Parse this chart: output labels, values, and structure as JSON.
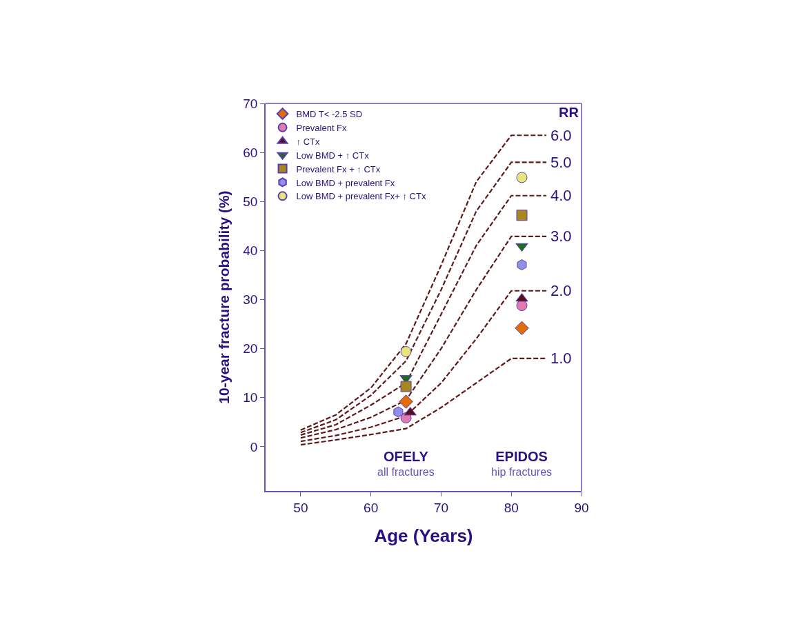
{
  "chart_data": {
    "type": "scatter",
    "xlabel": "Age (Years)",
    "ylabel": "10-year fracture probability (%)",
    "xlim": [
      45,
      90
    ],
    "xticks": [
      50,
      60,
      70,
      80,
      90
    ],
    "ylim": [
      -9,
      70
    ],
    "yticks": [
      0,
      10,
      20,
      30,
      40,
      50,
      60,
      70
    ],
    "grid": false,
    "legend": "top left",
    "annotations": [
      "RR",
      "OFELY\nall fractures",
      "EPIDOS\nhip fractures"
    ],
    "series": [
      {
        "name": "6.0",
        "type": "line",
        "line_style": "dashed",
        "marker": "none",
        "color": "#5c1a1a",
        "x": [
          50,
          55,
          60,
          65,
          70,
          75,
          80,
          85
        ],
        "values": [
          3.4,
          6.5,
          12,
          21,
          37,
          54,
          63.5,
          63.5
        ]
      },
      {
        "name": "5.0",
        "type": "line",
        "line_style": "dashed",
        "marker": "none",
        "color": "#5c1a1a",
        "x": [
          50,
          55,
          60,
          65,
          70,
          75,
          80,
          85
        ],
        "values": [
          2.9,
          5.5,
          10.5,
          17.5,
          32,
          48,
          58,
          58
        ]
      },
      {
        "name": "4.0",
        "type": "line",
        "line_style": "dashed",
        "marker": "none",
        "color": "#5c1a1a",
        "x": [
          50,
          55,
          60,
          65,
          70,
          75,
          80,
          85
        ],
        "values": [
          2.4,
          4.5,
          8.5,
          13,
          27,
          41,
          51.2,
          51.2
        ]
      },
      {
        "name": "3.0",
        "type": "line",
        "line_style": "dashed",
        "marker": "none",
        "color": "#5c1a1a",
        "x": [
          50,
          55,
          60,
          65,
          70,
          75,
          80,
          85
        ],
        "values": [
          1.8,
          3.5,
          6,
          9.5,
          20,
          32,
          42.9,
          42.9
        ]
      },
      {
        "name": "2.0",
        "type": "line",
        "line_style": "dashed",
        "marker": "none",
        "color": "#5c1a1a",
        "x": [
          50,
          55,
          60,
          65,
          70,
          75,
          80,
          85
        ],
        "values": [
          1.1,
          2.3,
          4,
          6.3,
          13,
          22,
          31.8,
          31.8
        ]
      },
      {
        "name": "1.0",
        "type": "line",
        "line_style": "dashed",
        "marker": "none",
        "color": "#5c1a1a",
        "x": [
          50,
          55,
          60,
          65,
          70,
          75,
          80,
          85
        ],
        "values": [
          0.4,
          1.4,
          2.5,
          3.7,
          8,
          13,
          18,
          18
        ]
      },
      {
        "name": "BMD T< -2.5 SD",
        "marker": "diamond",
        "color": "#e36c0a",
        "x": [
          65,
          81.5
        ],
        "values": [
          9.2,
          24.2
        ]
      },
      {
        "name": "Prevalent Fx",
        "marker": "circle",
        "color": "#e07ab0",
        "x": [
          65,
          81.5
        ],
        "values": [
          5.9,
          28.8
        ]
      },
      {
        "name": "↑ CTx",
        "marker": "triangle",
        "color": "#5a0f1e",
        "x": [
          65.6,
          81.5
        ],
        "values": [
          7,
          30.2
        ]
      },
      {
        "name": "Low BMD + ↑ CTx",
        "marker": "triangle-down",
        "color": "#1f6b1f",
        "x": [
          65,
          81.5
        ],
        "values": [
          14,
          40.9
        ]
      },
      {
        "name": "Prevalent Fx + ↑ CTx",
        "marker": "square",
        "color": "#a8871f",
        "x": [
          65,
          81.5
        ],
        "values": [
          12.3,
          47.2
        ]
      },
      {
        "name": "Low BMD + prevalent Fx",
        "color": "#9090e6",
        "x": [
          63.9,
          81.5
        ],
        "values": [
          7.1,
          37.1
        ]
      },
      {
        "name": "Low BMD + prevalent Fx+ ↑ CTx",
        "marker": "circle",
        "color": "#e8e57a",
        "x": [
          65,
          81.5
        ],
        "values": [
          19.4,
          54.9
        ]
      }
    ]
  }
}
